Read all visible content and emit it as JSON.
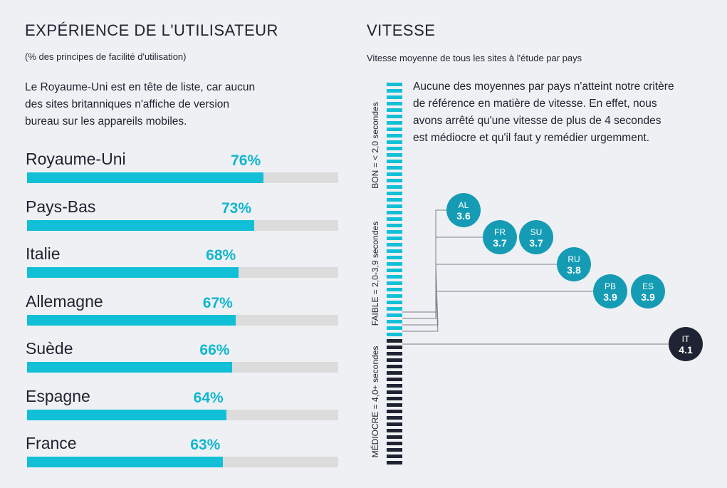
{
  "left": {
    "title": "EXPÉRIENCE DE L'UTILISATEUR",
    "subtitle": "(% des principes de facilité d'utilisation)",
    "description_lines": [
      "Le Royaume-Uni est en tête de liste, car aucun",
      "des sites britanniques n'affiche de version",
      "bureau sur les appareils mobiles."
    ]
  },
  "right": {
    "title": "VITESSE",
    "subtitle": "Vitesse moyenne de tous les sites à l'étude par pays",
    "description_lines": [
      "Aucune des moyennes par pays n'atteint notre critère",
      "de référence en matière de vitesse. En effet, nous",
      "avons arrêté qu'une vitesse de plus de 4 secondes",
      "est médiocre et qu'il faut y remédier urgemment."
    ]
  },
  "colors": {
    "accent": "#11c0d6",
    "accent_text": "#11b6cf",
    "track": "#dcdcdc",
    "dark": "#1e2433",
    "circle": "#159cb4",
    "background": "#eef0f3"
  },
  "chart_data": [
    {
      "type": "bar",
      "orientation": "horizontal",
      "categories": [
        "Royaume-Uni",
        "Pays-Bas",
        "Italie",
        "Allemagne",
        "Suède",
        "Espagne",
        "France"
      ],
      "values": [
        76,
        73,
        68,
        67,
        66,
        64,
        63
      ],
      "value_labels": [
        "76%",
        "73%",
        "68%",
        "67%",
        "66%",
        "64%",
        "63%"
      ],
      "xlim": [
        0,
        100
      ],
      "grid": false
    },
    {
      "type": "scatter",
      "categories": [
        "AL",
        "FR",
        "SU",
        "RU",
        "PB",
        "ES",
        "IT"
      ],
      "values": [
        3.6,
        3.7,
        3.7,
        3.8,
        3.9,
        3.9,
        4.1
      ],
      "value_labels": [
        "3.6",
        "3.7",
        "3.7",
        "3.8",
        "3.9",
        "3.9",
        "4.1"
      ],
      "ylim": [
        0,
        6
      ],
      "bands": [
        {
          "label": "BON = < 2,0 secondes",
          "from": 0,
          "to": 2.0
        },
        {
          "label": "FAIBLE = 2,0-3,9 secondes",
          "from": 2.0,
          "to": 4.0
        },
        {
          "label": "MÉDIOCRE = 4,0+ secondes",
          "from": 4.0,
          "to": 6.0
        }
      ]
    }
  ]
}
